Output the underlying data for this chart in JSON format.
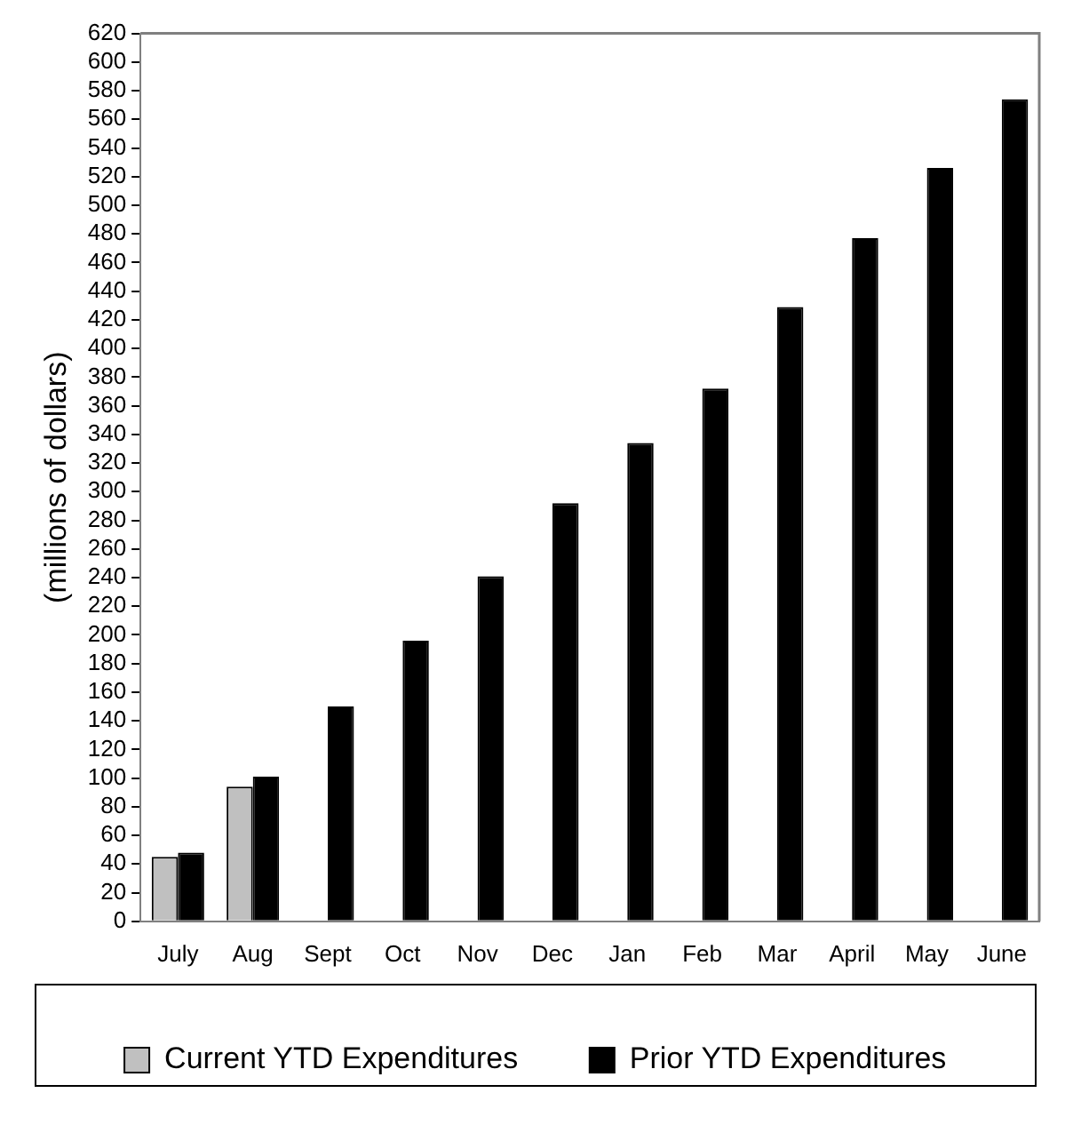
{
  "chart_data": {
    "type": "bar",
    "ylabel": "(millions of dollars)",
    "categories": [
      "July",
      "Aug",
      "Sept",
      "Oct",
      "Nov",
      "Dec",
      "Jan",
      "Feb",
      "Mar",
      "April",
      "May",
      "June"
    ],
    "series": [
      {
        "name": "Current YTD Expenditures",
        "color": "#c0c0c0",
        "values": [
          45,
          94,
          null,
          null,
          null,
          null,
          null,
          null,
          null,
          null,
          null,
          null
        ]
      },
      {
        "name": "Prior YTD Expenditures",
        "color": "#000000",
        "values": [
          48,
          101,
          150,
          196,
          241,
          292,
          334,
          372,
          429,
          477,
          526,
          574
        ]
      }
    ],
    "ylim": [
      0,
      620
    ],
    "yticks": [
      0,
      20,
      40,
      60,
      80,
      100,
      120,
      140,
      160,
      180,
      200,
      220,
      240,
      260,
      280,
      300,
      320,
      340,
      360,
      380,
      400,
      420,
      440,
      460,
      480,
      500,
      520,
      540,
      560,
      580,
      600,
      620
    ],
    "grid": false,
    "legend": "bottom"
  }
}
